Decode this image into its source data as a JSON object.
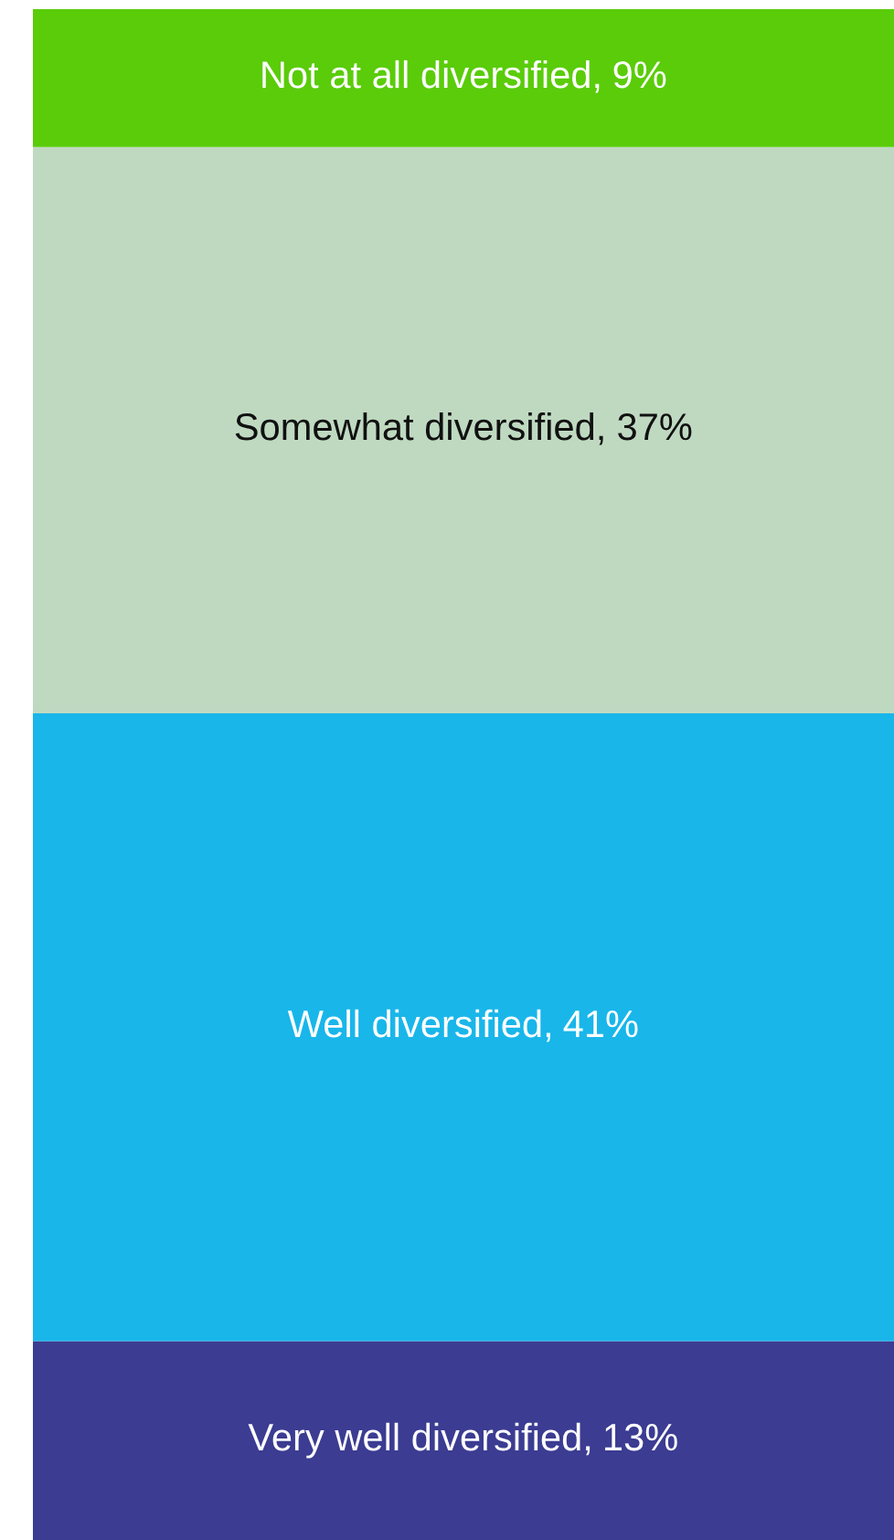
{
  "chart_data": {
    "type": "bar",
    "stacked": true,
    "categories": [
      null
    ],
    "tick_labels": false,
    "legend": false,
    "series": [
      {
        "name": "Very well diversified,",
        "color": "#3b3c92",
        "values": [
          13
        ],
        "value_labels": [
          "13%"
        ]
      },
      {
        "name": "Well diversified,",
        "color": "#19b6ea",
        "values": [
          41
        ],
        "value_labels": [
          "41%"
        ]
      },
      {
        "name": "Somewhat diversified,",
        "color": "#bfd9c1",
        "values": [
          37
        ],
        "value_labels": [
          "37%"
        ]
      },
      {
        "name": "Not at all diversified,",
        "color": "#5acc0a",
        "values": [
          9
        ],
        "value_labels": [
          "9%"
        ]
      }
    ]
  }
}
